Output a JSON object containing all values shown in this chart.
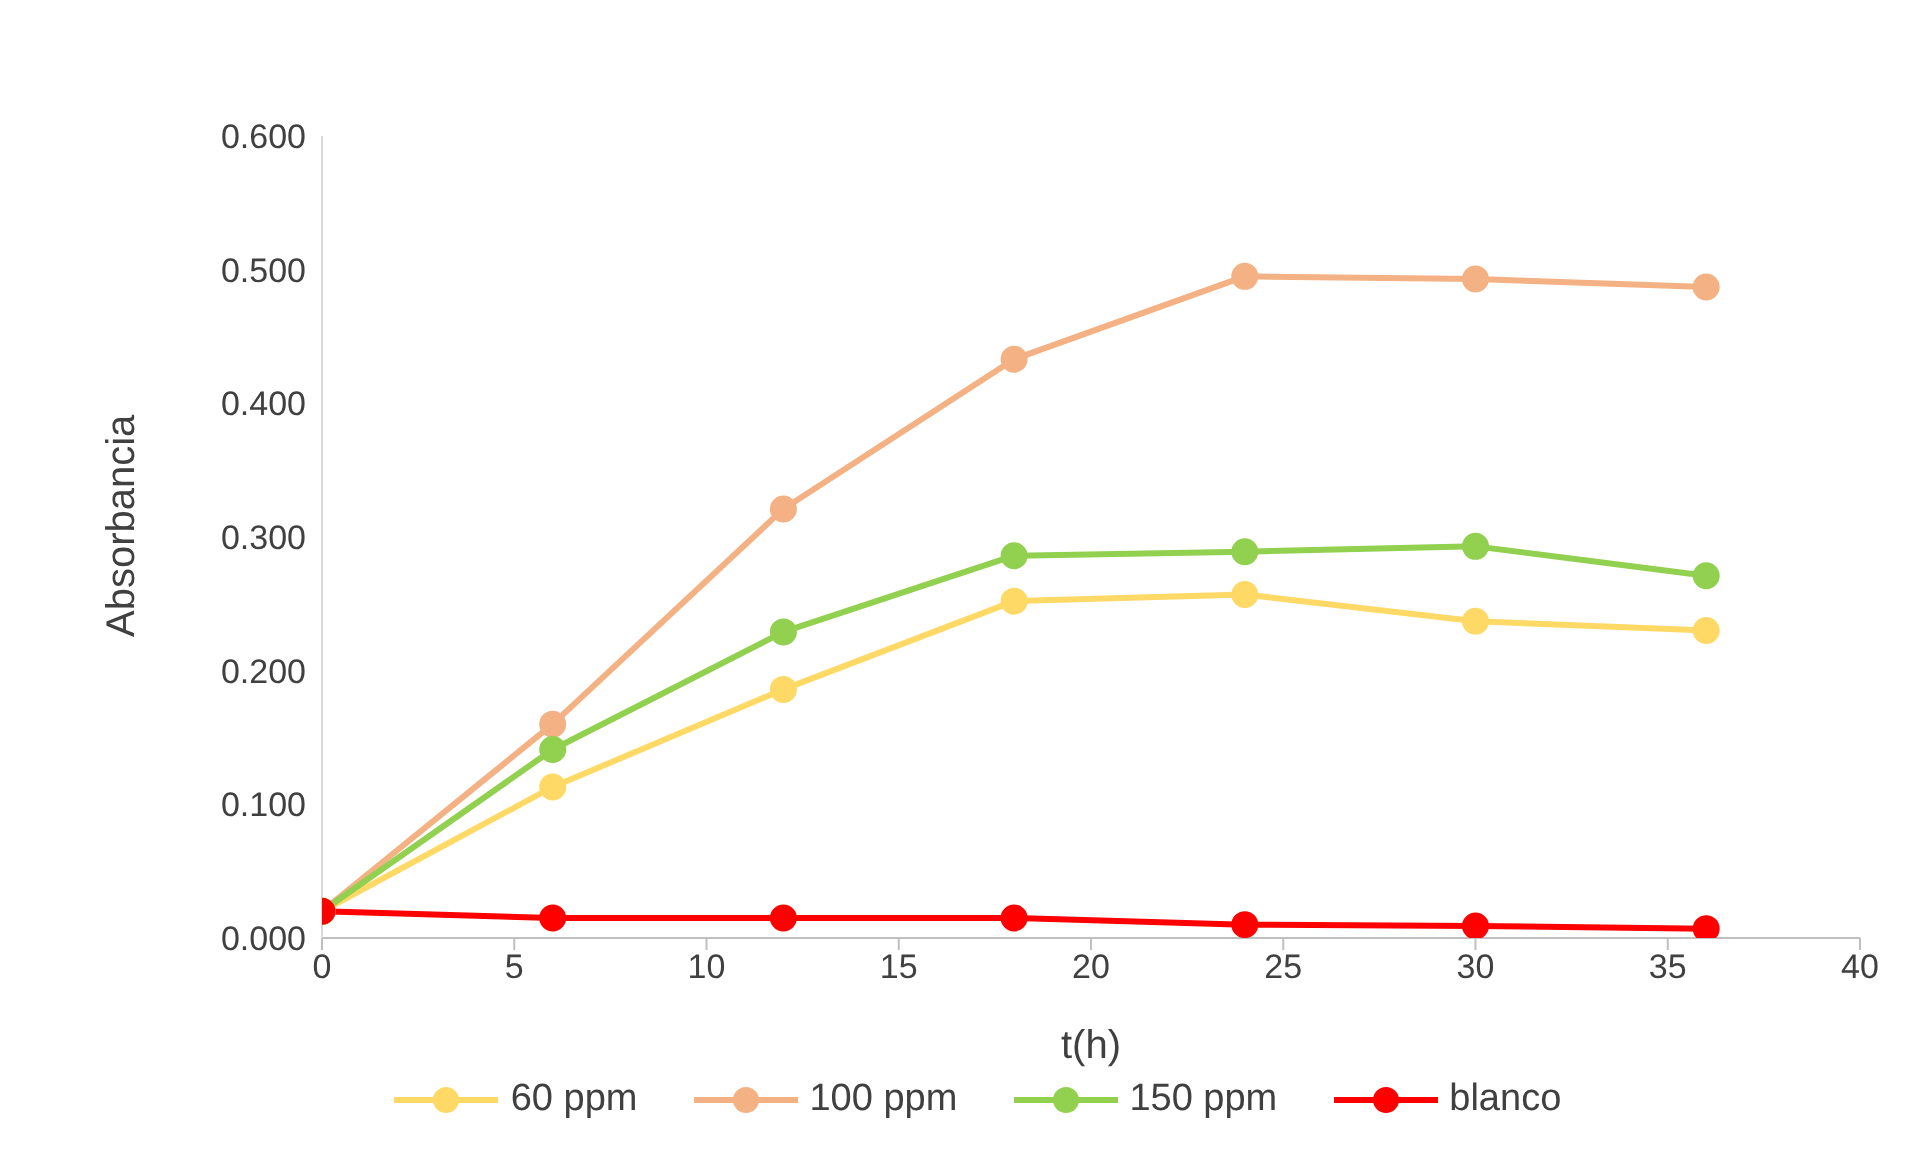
{
  "chart_data": {
    "type": "line",
    "xlabel": "t(h)",
    "ylabel": "Absorbancia",
    "x": [
      0,
      6,
      12,
      18,
      24,
      30,
      36
    ],
    "series": [
      {
        "name": "60 ppm",
        "color": "#ffd966",
        "values": [
          0.02,
          0.113,
          0.186,
          0.252,
          0.257,
          0.237,
          0.23
        ]
      },
      {
        "name": "100 ppm",
        "color": "#f4b183",
        "values": [
          0.02,
          0.16,
          0.321,
          0.433,
          0.495,
          0.493,
          0.487
        ]
      },
      {
        "name": "150 ppm",
        "color": "#92d050",
        "values": [
          0.02,
          0.141,
          0.229,
          0.286,
          0.289,
          0.293,
          0.271
        ]
      },
      {
        "name": "blanco",
        "color": "#ff0000",
        "values": [
          0.02,
          0.015,
          0.015,
          0.015,
          0.01,
          0.009,
          0.007
        ]
      }
    ],
    "xlim": [
      0,
      40
    ],
    "xticks": [
      0,
      5,
      10,
      15,
      20,
      25,
      30,
      35,
      40
    ],
    "ylim": [
      0,
      0.6
    ],
    "yticks": [
      {
        "value": 0,
        "label": "0.000"
      },
      {
        "value": 0.1,
        "label": "0.100"
      },
      {
        "value": 0.2,
        "label": "0.200"
      },
      {
        "value": 0.3,
        "label": "0.300"
      },
      {
        "value": 0.4,
        "label": "0.400"
      },
      {
        "value": 0.5,
        "label": "0.500"
      },
      {
        "value": 0.6,
        "label": "0.600"
      }
    ],
    "grid": false,
    "legend": "bottom",
    "marker": "circle",
    "line_style": "solid"
  }
}
